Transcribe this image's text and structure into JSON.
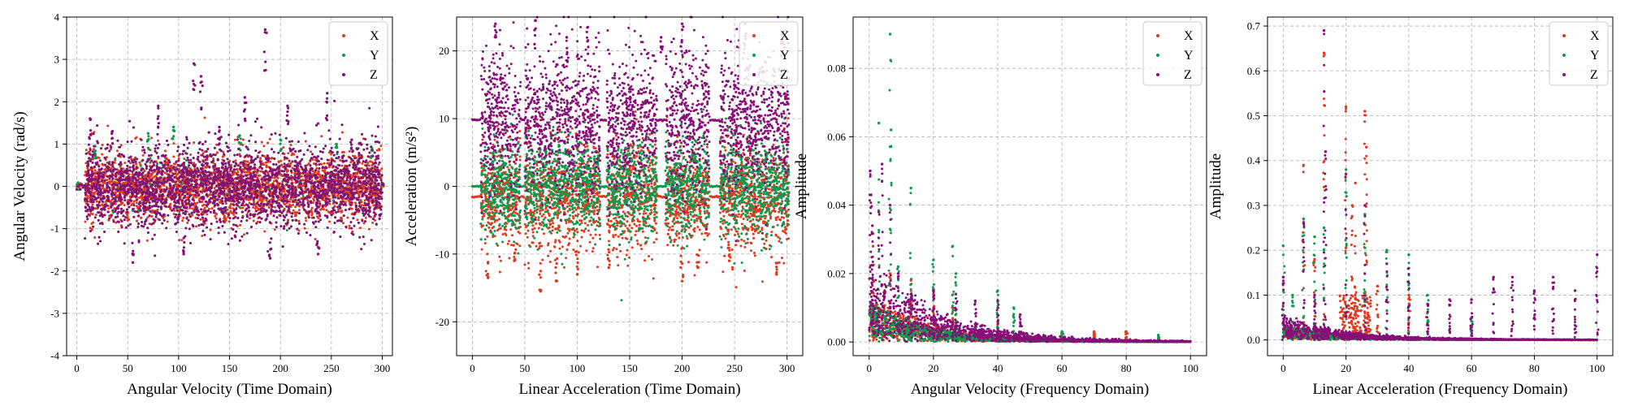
{
  "figure": {
    "background": "#ffffff"
  },
  "colors": {
    "X": "#e03a1e",
    "Y": "#0e9a4c",
    "Z": "#870f77",
    "grid": "#b0b0b0"
  },
  "chart_data": [
    {
      "type": "scatter",
      "xlabel": "Angular Velocity (Time Domain)",
      "ylabel": "Angular Velocity (rad/s)",
      "xlim": [
        -10,
        310
      ],
      "ylim": [
        -4,
        4
      ],
      "xticks": [
        0,
        50,
        100,
        150,
        200,
        250,
        300
      ],
      "yticks": [
        -4,
        -3,
        -2,
        -1,
        0,
        1,
        2,
        3,
        4
      ],
      "grid": true,
      "legend": "top-right",
      "series": [
        {
          "name": "X",
          "segments": [
            [
              8,
              300
            ]
          ],
          "spread": 0.45,
          "spikes": [
            [
              50,
              -0.8
            ],
            [
              145,
              -0.85
            ],
            [
              215,
              -0.8
            ],
            [
              260,
              -0.8
            ]
          ]
        },
        {
          "name": "Y",
          "segments": [
            [
              8,
              300
            ]
          ],
          "spread": 0.55,
          "spikes": [
            [
              18,
              0.95
            ],
            [
              70,
              1.25
            ],
            [
              95,
              1.4
            ],
            [
              160,
              1.2
            ],
            [
              200,
              1.1
            ],
            [
              255,
              1.0
            ],
            [
              290,
              0.9
            ]
          ]
        },
        {
          "name": "Z",
          "segments": [
            [
              8,
              300
            ]
          ],
          "spread": 0.55,
          "spikes": [
            [
              13,
              1.6
            ],
            [
              35,
              1.3
            ],
            [
              55,
              -1.8
            ],
            [
              80,
              1.9
            ],
            [
              105,
              -1.6
            ],
            [
              115,
              2.9
            ],
            [
              122,
              2.6
            ],
            [
              140,
              1.4
            ],
            [
              165,
              2.1
            ],
            [
              185,
              3.7
            ],
            [
              190,
              -1.7
            ],
            [
              207,
              1.9
            ],
            [
              237,
              -1.6
            ],
            [
              246,
              2.2
            ],
            [
              270,
              1.1
            ]
          ]
        }
      ]
    },
    {
      "type": "scatter",
      "xlabel": "Linear Acceleration (Time Domain)",
      "ylabel": "Acceleration (m/s²)",
      "xlim": [
        -15,
        315
      ],
      "ylim": [
        -25,
        25
      ],
      "xticks": [
        0,
        50,
        100,
        150,
        200,
        250,
        300
      ],
      "yticks": [
        -20,
        -10,
        0,
        10,
        20
      ],
      "grid": true,
      "legend": "top-right",
      "series": [
        {
          "name": "X",
          "segments": [
            [
              8,
              46
            ],
            [
              50,
              122
            ],
            [
              128,
              176
            ],
            [
              184,
              226
            ],
            [
              236,
              302
            ]
          ],
          "center": -1.5,
          "spread": 4.5,
          "spikes": [
            [
              15,
              -13.5
            ],
            [
              40,
              -11
            ],
            [
              65,
              -15.5
            ],
            [
              80,
              -14
            ],
            [
              100,
              -13
            ],
            [
              130,
              -12
            ],
            [
              200,
              -14
            ],
            [
              215,
              -12
            ],
            [
              245,
              -11
            ],
            [
              290,
              -13
            ]
          ]
        },
        {
          "name": "Y",
          "segments": [
            [
              8,
              46
            ],
            [
              50,
              122
            ],
            [
              128,
              176
            ],
            [
              184,
              226
            ],
            [
              236,
              302
            ]
          ],
          "center": 0,
          "spread": 4.0,
          "spikes": [
            [
              20,
              5
            ],
            [
              70,
              5.5
            ],
            [
              120,
              4.5
            ],
            [
              160,
              5
            ],
            [
              210,
              5
            ],
            [
              280,
              5
            ]
          ]
        },
        {
          "name": "Z",
          "segments": [
            [
              8,
              46
            ],
            [
              50,
              122
            ],
            [
              128,
              176
            ],
            [
              184,
              226
            ],
            [
              236,
              302
            ]
          ],
          "center": 9.8,
          "spread": 6.0,
          "idle": 9.8,
          "spikes": [
            [
              22,
              24
            ],
            [
              60,
              24.5
            ],
            [
              90,
              22
            ],
            [
              110,
              23.5
            ],
            [
              180,
              22
            ],
            [
              200,
              24
            ],
            [
              260,
              24
            ],
            [
              295,
              22.5
            ]
          ]
        }
      ]
    },
    {
      "type": "scatter",
      "xlabel": "Angular Velocity (Frequency Domain)",
      "ylabel": "Amplitude",
      "xlim": [
        -5,
        105
      ],
      "ylim": [
        -0.004,
        0.095
      ],
      "xticks": [
        0,
        20,
        40,
        60,
        80,
        100
      ],
      "yticks": [
        0.0,
        0.02,
        0.04,
        0.06,
        0.08
      ],
      "yticklabels": [
        "0.00",
        "0.02",
        "0.04",
        "0.06",
        "0.08"
      ],
      "grid": true,
      "legend": "top-right",
      "series": [
        {
          "name": "X",
          "decay": 0.012,
          "spikes": [
            [
              1.2,
              0.028
            ],
            [
              6.5,
              0.02
            ],
            [
              13,
              0.018
            ],
            [
              20,
              0.014
            ],
            [
              26,
              0.01
            ],
            [
              40,
              0.006
            ],
            [
              70,
              0.003
            ],
            [
              80,
              0.003
            ]
          ]
        },
        {
          "name": "Y",
          "decay": 0.01,
          "spikes": [
            [
              3,
              0.064
            ],
            [
              6.5,
              0.09
            ],
            [
              6.8,
              0.062
            ],
            [
              9,
              0.022
            ],
            [
              13,
              0.045
            ],
            [
              20,
              0.024
            ],
            [
              26,
              0.028
            ],
            [
              27,
              0.02
            ],
            [
              40,
              0.015
            ],
            [
              45,
              0.01
            ],
            [
              60,
              0.003
            ],
            [
              90,
              0.002
            ]
          ]
        },
        {
          "name": "Z",
          "decay": 0.022,
          "spikes": [
            [
              0.3,
              0.05
            ],
            [
              0.6,
              0.043
            ],
            [
              1,
              0.034
            ],
            [
              3,
              0.038
            ],
            [
              4,
              0.052
            ],
            [
              6.5,
              0.04
            ],
            [
              9,
              0.02
            ],
            [
              13,
              0.014
            ],
            [
              20,
              0.015
            ],
            [
              27,
              0.014
            ],
            [
              33,
              0.012
            ],
            [
              40,
              0.012
            ],
            [
              47,
              0.008
            ]
          ]
        }
      ]
    },
    {
      "type": "scatter",
      "xlabel": "Linear Acceleration (Frequency Domain)",
      "ylabel": "Amplitude",
      "xlim": [
        -5,
        105
      ],
      "ylim": [
        -0.035,
        0.72
      ],
      "xticks": [
        0,
        20,
        40,
        60,
        80,
        100
      ],
      "yticks": [
        0.0,
        0.1,
        0.2,
        0.3,
        0.4,
        0.5,
        0.6,
        0.7
      ],
      "yticklabels": [
        "0.0",
        "0.1",
        "0.2",
        "0.3",
        "0.4",
        "0.5",
        "0.6",
        "0.7"
      ],
      "grid": true,
      "legend": "top-right",
      "series": [
        {
          "name": "X",
          "decay": 0.03,
          "spikes": [
            [
              6.5,
              0.39
            ],
            [
              10,
              0.18
            ],
            [
              13,
              0.64
            ],
            [
              20,
              0.52
            ],
            [
              22,
              0.3
            ],
            [
              23,
              0.35
            ],
            [
              26,
              0.51
            ],
            [
              26.5,
              0.43
            ],
            [
              30,
              0.12
            ],
            [
              40,
              0.1
            ]
          ],
          "hump": [
            [
              18,
              28
            ],
            0.1
          ]
        },
        {
          "name": "Y",
          "decay": 0.03,
          "spikes": [
            [
              0,
              0.21
            ],
            [
              3,
              0.1
            ],
            [
              6.5,
              0.27
            ],
            [
              10,
              0.23
            ],
            [
              13,
              0.25
            ],
            [
              20,
              0.38
            ],
            [
              26,
              0.28
            ],
            [
              33,
              0.2
            ],
            [
              40,
              0.19
            ],
            [
              46,
              0.1
            ],
            [
              60,
              0.05
            ]
          ]
        },
        {
          "name": "Z",
          "decay": 0.045,
          "spikes": [
            [
              0,
              0.14
            ],
            [
              6.5,
              0.26
            ],
            [
              10,
              0.1
            ],
            [
              13,
              0.69
            ],
            [
              13.5,
              0.42
            ],
            [
              20,
              0.37
            ],
            [
              26,
              0.3
            ],
            [
              33,
              0.17
            ],
            [
              40,
              0.16
            ],
            [
              46,
              0.08
            ],
            [
              53,
              0.09
            ],
            [
              60,
              0.09
            ],
            [
              67,
              0.14
            ],
            [
              73,
              0.14
            ],
            [
              80,
              0.11
            ],
            [
              86,
              0.14
            ],
            [
              93,
              0.11
            ],
            [
              100,
              0.19
            ]
          ]
        }
      ]
    }
  ]
}
